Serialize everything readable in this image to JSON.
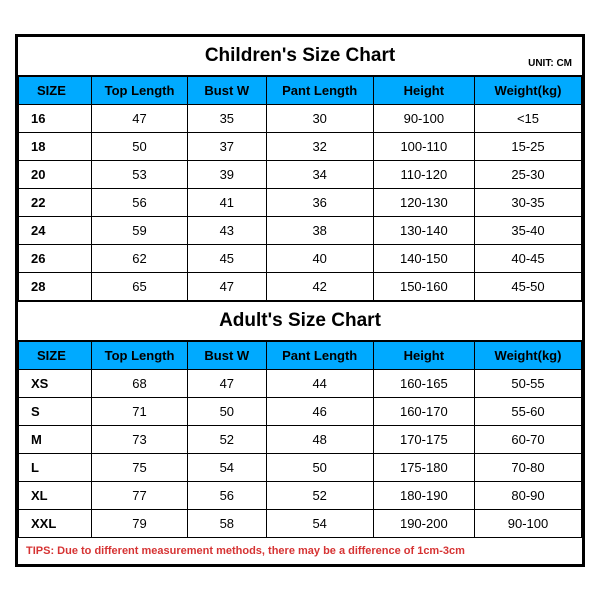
{
  "colors": {
    "header_bg": "#00aaff",
    "border": "#000000",
    "tips_color": "#d63333",
    "background": "#ffffff"
  },
  "unit_label": "UNIT: CM",
  "columns": [
    "SIZE",
    "Top Length",
    "Bust W",
    "Pant Length",
    "Height",
    "Weight(kg)"
  ],
  "children": {
    "title": "Children's Size Chart",
    "rows": [
      [
        "16",
        "47",
        "35",
        "30",
        "90-100",
        "<15"
      ],
      [
        "18",
        "50",
        "37",
        "32",
        "100-110",
        "15-25"
      ],
      [
        "20",
        "53",
        "39",
        "34",
        "110-120",
        "25-30"
      ],
      [
        "22",
        "56",
        "41",
        "36",
        "120-130",
        "30-35"
      ],
      [
        "24",
        "59",
        "43",
        "38",
        "130-140",
        "35-40"
      ],
      [
        "26",
        "62",
        "45",
        "40",
        "140-150",
        "40-45"
      ],
      [
        "28",
        "65",
        "47",
        "42",
        "150-160",
        "45-50"
      ]
    ]
  },
  "adult": {
    "title": "Adult's Size Chart",
    "rows": [
      [
        "XS",
        "68",
        "47",
        "44",
        "160-165",
        "50-55"
      ],
      [
        "S",
        "71",
        "50",
        "46",
        "160-170",
        "55-60"
      ],
      [
        "M",
        "73",
        "52",
        "48",
        "170-175",
        "60-70"
      ],
      [
        "L",
        "75",
        "54",
        "50",
        "175-180",
        "70-80"
      ],
      [
        "XL",
        "77",
        "56",
        "52",
        "180-190",
        "80-90"
      ],
      [
        "XXL",
        "79",
        "58",
        "54",
        "190-200",
        "90-100"
      ]
    ]
  },
  "tips": "TIPS: Due to different measurement methods, there may be a difference of 1cm-3cm"
}
